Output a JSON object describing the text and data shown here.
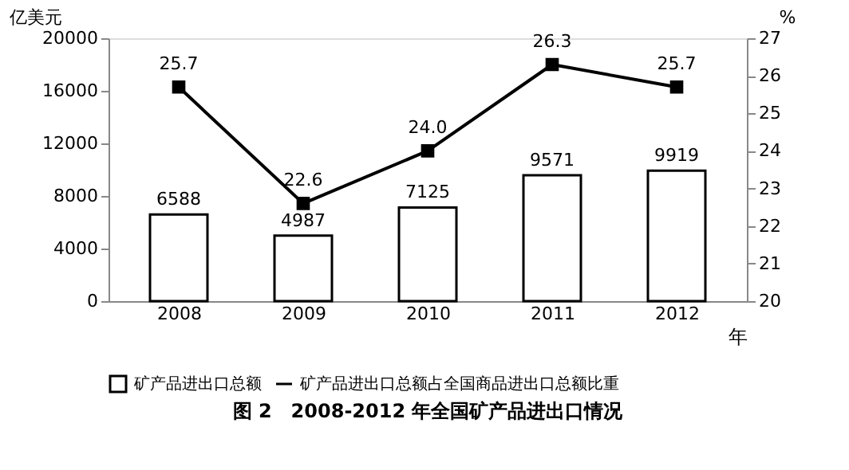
{
  "chart_data": {
    "type": "bar",
    "title": "图 2　2008-2012 年全国矿产品进出口情况",
    "xlabel": "年",
    "ylabel": "亿美元",
    "y2label": "%",
    "categories": [
      "2008",
      "2009",
      "2010",
      "2011",
      "2012"
    ],
    "series": [
      {
        "name": "矿产品进出口总额",
        "color": "#ffffff",
        "values": [
          6588,
          4987,
          7125,
          9571,
          9919
        ],
        "value_labels": [
          "6588",
          "4987",
          "7125",
          "9571",
          "9919"
        ]
      },
      {
        "name": "矿产品进出口总额占全国商品进出口总额比重",
        "type": "line",
        "axis": "y2",
        "color": "#000000",
        "values": [
          25.7,
          22.6,
          24.0,
          26.3,
          25.7
        ],
        "value_labels": [
          "25.7",
          "22.6",
          "24.0",
          "26.3",
          "25.7"
        ]
      }
    ],
    "ylim": [
      0,
      20000
    ],
    "yticks": [
      0,
      4000,
      8000,
      12000,
      16000,
      20000
    ],
    "y2lim": [
      20,
      27
    ],
    "y2ticks": [
      20,
      21,
      22,
      23,
      24,
      25,
      26,
      27
    ],
    "legend": "bottom",
    "marker": "square",
    "line_style": "solid"
  }
}
